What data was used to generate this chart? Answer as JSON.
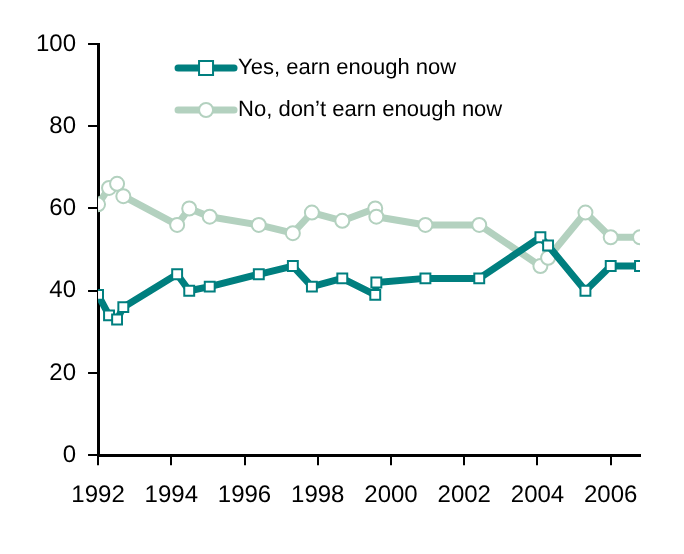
{
  "chart_data": {
    "type": "line",
    "xlim": [
      1992,
      2006.8
    ],
    "xticks": [
      1992,
      1994,
      1996,
      1998,
      2000,
      2002,
      2004,
      2006
    ],
    "ylim": [
      0,
      100
    ],
    "yticks": [
      0,
      20,
      40,
      60,
      80,
      100
    ],
    "grid": false,
    "legend": "top left",
    "line_style": "solid",
    "series": [
      {
        "name": "Yes, earn enough now",
        "color": "#007f7f",
        "marker": "square",
        "x": [
          1992,
          1992.3,
          1992.52,
          1992.69,
          1994.16,
          1994.49,
          1995.05,
          1996.39,
          1997.32,
          1997.84,
          1998.67,
          1999.57,
          1999.6,
          2000.94,
          2002.41,
          2004.08,
          2004.29,
          2005.31,
          2006,
          2006.8
        ],
        "values": [
          39,
          34,
          33,
          36,
          44,
          40,
          41,
          44,
          46,
          41,
          43,
          39,
          42,
          43,
          43,
          53,
          51,
          40,
          46,
          46
        ]
      },
      {
        "name": "No, don’t earn enough now",
        "color": "#b3d1bf",
        "marker": "circle",
        "x": [
          1992,
          1992.3,
          1992.52,
          1992.69,
          1994.16,
          1994.49,
          1995.05,
          1996.39,
          1997.32,
          1997.84,
          1998.67,
          1999.57,
          1999.6,
          2000.94,
          2002.41,
          2004.08,
          2004.29,
          2005.31,
          2006,
          2006.8
        ],
        "values": [
          61,
          65,
          66,
          63,
          56,
          60,
          58,
          56,
          54,
          59,
          57,
          60,
          58,
          56,
          56,
          46,
          48,
          59,
          53,
          53
        ]
      }
    ]
  }
}
